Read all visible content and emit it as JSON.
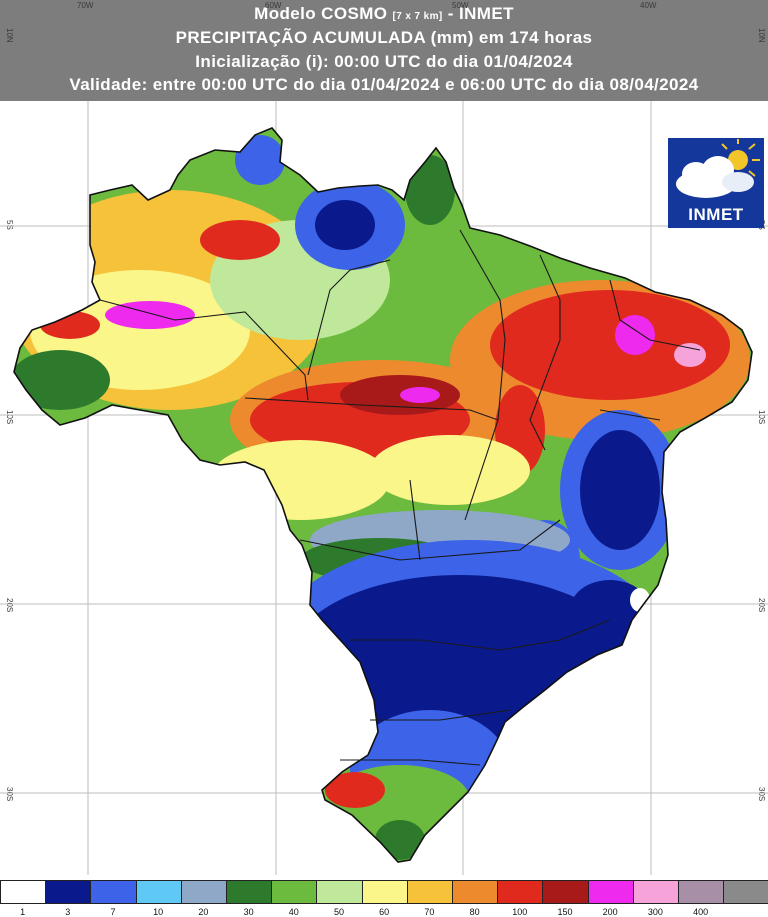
{
  "header": {
    "line1_main": "Modelo COSMO",
    "line1_res": "[7 x 7 km]",
    "line1_org": "- INMET",
    "line2": "PRECIPITAÇÃO ACUMULADA (mm) em 174 horas",
    "line3": "Inicialização (i): 00:00 UTC do dia 01/04/2024",
    "line4": "Validade: entre 00:00 UTC do dia 01/04/2024 e 06:00 UTC do dia 08/04/2024"
  },
  "grid": {
    "lon_labels": [
      "70W",
      "60W",
      "50W",
      "40W"
    ],
    "lat_labels_left": [
      "10N",
      "5S",
      "10S",
      "20S",
      "30S"
    ],
    "lat_labels_right": [
      "10N",
      "5S",
      "10S",
      "20S",
      "30S"
    ]
  },
  "logo": {
    "text": "INMET",
    "sky_color": "#13379a"
  },
  "legend": {
    "items": [
      {
        "label": "1",
        "color": "#ffffff"
      },
      {
        "label": "3",
        "color": "#0a1a8c"
      },
      {
        "label": "7",
        "color": "#3c63e8"
      },
      {
        "label": "10",
        "color": "#5fc8f5"
      },
      {
        "label": "20",
        "color": "#8fa8c8"
      },
      {
        "label": "30",
        "color": "#2e7a2c"
      },
      {
        "label": "40",
        "color": "#6cba3e"
      },
      {
        "label": "50",
        "color": "#bfe89a"
      },
      {
        "label": "60",
        "color": "#fbf68a"
      },
      {
        "label": "70",
        "color": "#f5c23a"
      },
      {
        "label": "80",
        "color": "#ee8a2e"
      },
      {
        "label": "100",
        "color": "#e02a1e"
      },
      {
        "label": "150",
        "color": "#a81a1a"
      },
      {
        "label": "200",
        "color": "#ee2aee"
      },
      {
        "label": "300",
        "color": "#f5a3d8"
      },
      {
        "label": "400",
        "color": "#a88fa8"
      },
      {
        "label": "",
        "color": "#8a8a8a"
      }
    ]
  }
}
